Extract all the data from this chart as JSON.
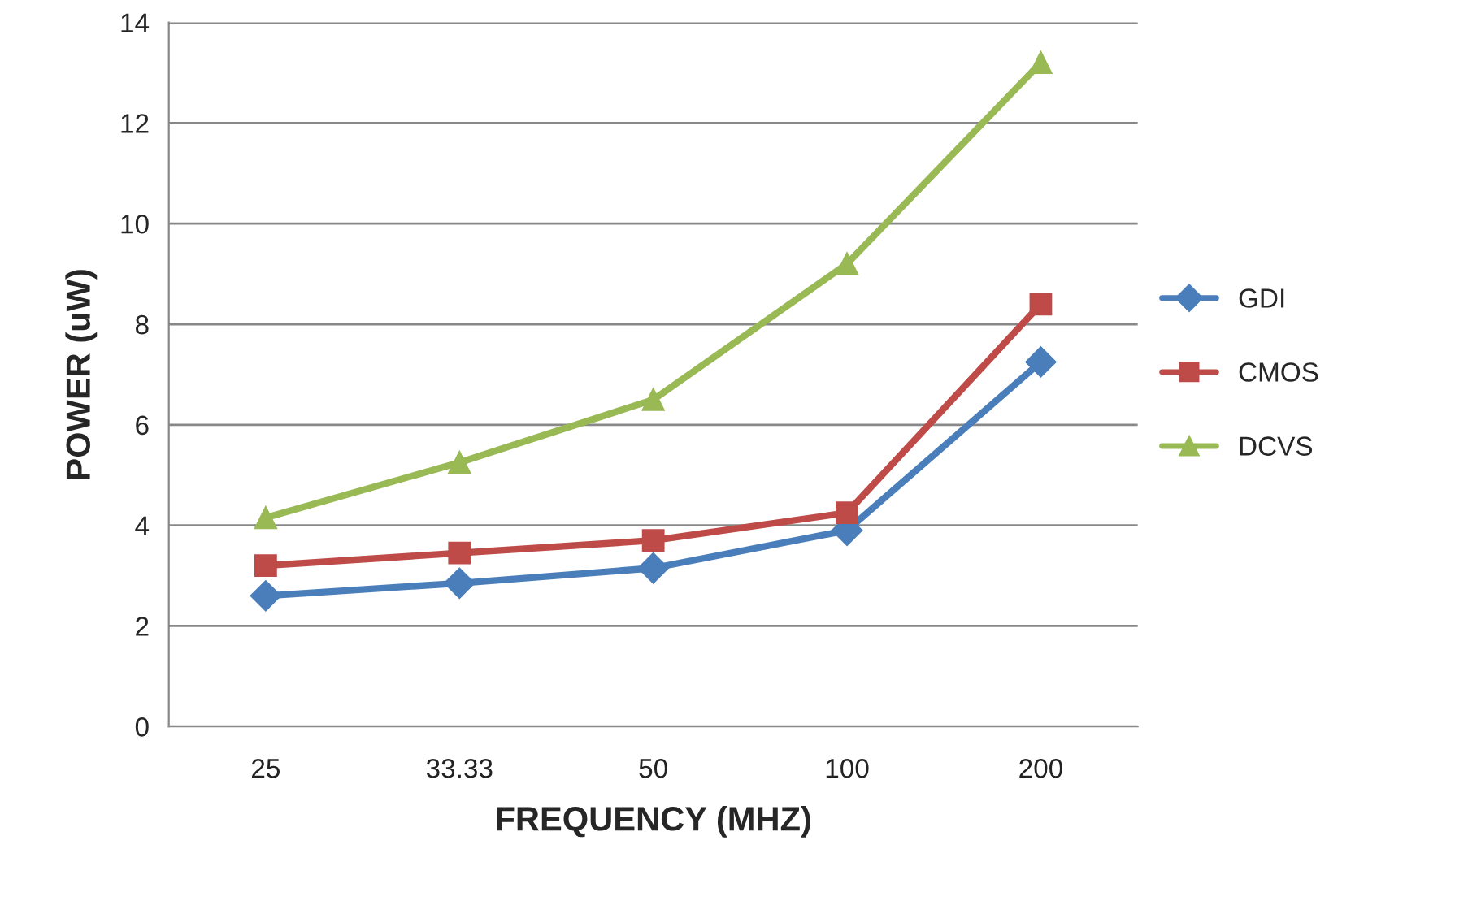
{
  "chart_data": {
    "type": "line",
    "xlabel": "FREQUENCY (MHZ)",
    "ylabel": "POWER (uW)",
    "categories": [
      "25",
      "33.33",
      "50",
      "100",
      "200"
    ],
    "series": [
      {
        "name": "GDI",
        "color": "#4a7ebb",
        "marker": "diamond",
        "values": [
          2.6,
          2.85,
          3.15,
          3.9,
          7.25
        ]
      },
      {
        "name": "CMOS",
        "color": "#be4b48",
        "marker": "square",
        "values": [
          3.2,
          3.45,
          3.7,
          4.25,
          8.4
        ]
      },
      {
        "name": "DCVS",
        "color": "#98b954",
        "marker": "triangle",
        "values": [
          4.15,
          5.25,
          6.5,
          9.2,
          13.2
        ]
      }
    ],
    "ylim": [
      0,
      14
    ],
    "yticks": [
      0,
      2,
      4,
      6,
      8,
      10,
      12,
      14
    ],
    "grid": "y",
    "legend": "right",
    "line_style": "solid"
  }
}
